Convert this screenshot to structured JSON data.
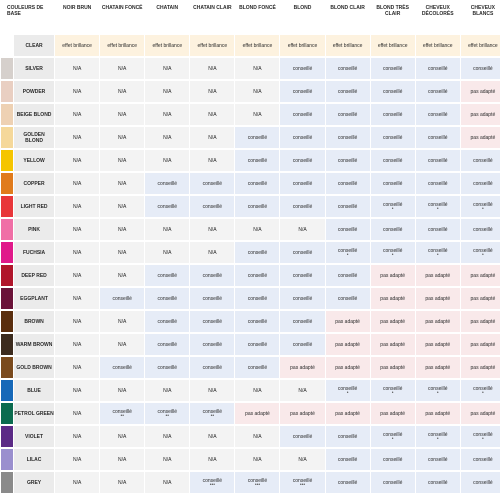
{
  "header": {
    "base_label": "COULEURS DE BASE",
    "columns": [
      "NOIR BRUN",
      "CHATAIN FONCÉ",
      "CHATAIN",
      "CHATAIN CLAIR",
      "BLOND FONCÉ",
      "BLOND",
      "BLOND CLAIR",
      "BLOND TRÈS CLAIR",
      "CHEVEUX DÉCOLORÉS",
      "CHEVEUX BLANCS"
    ]
  },
  "rows": [
    {
      "name": "CLEAR",
      "swatch": "#ffffff",
      "cells": [
        {
          "t": "effet brillance",
          "s": "eff"
        },
        {
          "t": "effet brillance",
          "s": "eff"
        },
        {
          "t": "effet brillance",
          "s": "eff"
        },
        {
          "t": "effet brillance",
          "s": "eff"
        },
        {
          "t": "effet brillance",
          "s": "eff"
        },
        {
          "t": "effet brillance",
          "s": "eff"
        },
        {
          "t": "effet brillance",
          "s": "eff"
        },
        {
          "t": "effet brillance",
          "s": "eff"
        },
        {
          "t": "effet brillance",
          "s": "eff"
        },
        {
          "t": "effet brillance",
          "s": "eff"
        }
      ]
    },
    {
      "name": "SILVER",
      "swatch": "#d6d0cc",
      "cells": [
        {
          "t": "N/A",
          "s": "neutral"
        },
        {
          "t": "N/A",
          "s": "neutral"
        },
        {
          "t": "N/A",
          "s": "neutral"
        },
        {
          "t": "N/A",
          "s": "neutral"
        },
        {
          "t": "N/A",
          "s": "neutral"
        },
        {
          "t": "conseillé",
          "s": "conseil"
        },
        {
          "t": "conseillé",
          "s": "conseil"
        },
        {
          "t": "conseillé",
          "s": "conseil"
        },
        {
          "t": "conseillé",
          "s": "conseil"
        },
        {
          "t": "conseillé",
          "s": "conseil"
        }
      ]
    },
    {
      "name": "POWDER",
      "swatch": "#e9cfc2",
      "cells": [
        {
          "t": "N/A",
          "s": "neutral"
        },
        {
          "t": "N/A",
          "s": "neutral"
        },
        {
          "t": "N/A",
          "s": "neutral"
        },
        {
          "t": "N/A",
          "s": "neutral"
        },
        {
          "t": "N/A",
          "s": "neutral"
        },
        {
          "t": "conseillé",
          "s": "conseil"
        },
        {
          "t": "conseillé",
          "s": "conseil"
        },
        {
          "t": "conseillé",
          "s": "conseil"
        },
        {
          "t": "conseillé",
          "s": "conseil"
        },
        {
          "t": "pas adapté",
          "s": "pas"
        }
      ]
    },
    {
      "name": "BEIGE BLOND",
      "swatch": "#eed1b3",
      "cells": [
        {
          "t": "N/A",
          "s": "neutral"
        },
        {
          "t": "N/A",
          "s": "neutral"
        },
        {
          "t": "N/A",
          "s": "neutral"
        },
        {
          "t": "N/A",
          "s": "neutral"
        },
        {
          "t": "N/A",
          "s": "neutral"
        },
        {
          "t": "conseillé",
          "s": "conseil"
        },
        {
          "t": "conseillé",
          "s": "conseil"
        },
        {
          "t": "conseillé",
          "s": "conseil"
        },
        {
          "t": "conseillé",
          "s": "conseil"
        },
        {
          "t": "pas adapté",
          "s": "pas"
        }
      ]
    },
    {
      "name": "GOLDEN BLOND",
      "swatch": "#f5d89a",
      "cells": [
        {
          "t": "N/A",
          "s": "neutral"
        },
        {
          "t": "N/A",
          "s": "neutral"
        },
        {
          "t": "N/A",
          "s": "neutral"
        },
        {
          "t": "N/A",
          "s": "neutral"
        },
        {
          "t": "conseillé",
          "s": "conseil"
        },
        {
          "t": "conseillé",
          "s": "conseil"
        },
        {
          "t": "conseillé",
          "s": "conseil"
        },
        {
          "t": "conseillé",
          "s": "conseil"
        },
        {
          "t": "conseillé",
          "s": "conseil"
        },
        {
          "t": "pas adapté",
          "s": "pas"
        }
      ]
    },
    {
      "name": "YELLOW",
      "swatch": "#f5c500",
      "cells": [
        {
          "t": "N/A",
          "s": "neutral"
        },
        {
          "t": "N/A",
          "s": "neutral"
        },
        {
          "t": "N/A",
          "s": "neutral"
        },
        {
          "t": "N/A",
          "s": "neutral"
        },
        {
          "t": "conseillé",
          "s": "conseil"
        },
        {
          "t": "conseillé",
          "s": "conseil"
        },
        {
          "t": "conseillé",
          "s": "conseil"
        },
        {
          "t": "conseillé",
          "s": "conseil"
        },
        {
          "t": "conseillé",
          "s": "conseil"
        },
        {
          "t": "conseillé",
          "s": "conseil"
        }
      ]
    },
    {
      "name": "COPPER",
      "swatch": "#e07b1c",
      "cells": [
        {
          "t": "N/A",
          "s": "neutral"
        },
        {
          "t": "N/A",
          "s": "neutral"
        },
        {
          "t": "conseillé",
          "s": "conseil"
        },
        {
          "t": "conseillé",
          "s": "conseil"
        },
        {
          "t": "conseillé",
          "s": "conseil"
        },
        {
          "t": "conseillé",
          "s": "conseil"
        },
        {
          "t": "conseillé",
          "s": "conseil"
        },
        {
          "t": "conseillé",
          "s": "conseil"
        },
        {
          "t": "conseillé",
          "s": "conseil"
        },
        {
          "t": "conseillé",
          "s": "conseil"
        }
      ]
    },
    {
      "name": "LIGHT RED",
      "swatch": "#e8363a",
      "cells": [
        {
          "t": "N/A",
          "s": "neutral"
        },
        {
          "t": "N/A",
          "s": "neutral"
        },
        {
          "t": "conseillé",
          "s": "conseil"
        },
        {
          "t": "conseillé",
          "s": "conseil"
        },
        {
          "t": "conseillé",
          "s": "conseil"
        },
        {
          "t": "conseillé",
          "s": "conseil"
        },
        {
          "t": "conseillé",
          "s": "conseil"
        },
        {
          "t": "conseillé",
          "s": "conseil",
          "d": "•"
        },
        {
          "t": "conseillé",
          "s": "conseil",
          "d": "•"
        },
        {
          "t": "conseillé",
          "s": "conseil",
          "d": "•"
        }
      ]
    },
    {
      "name": "PINK",
      "swatch": "#f06fa6",
      "cells": [
        {
          "t": "N/A",
          "s": "neutral"
        },
        {
          "t": "N/A",
          "s": "neutral"
        },
        {
          "t": "N/A",
          "s": "neutral"
        },
        {
          "t": "N/A",
          "s": "neutral"
        },
        {
          "t": "N/A",
          "s": "neutral"
        },
        {
          "t": "N/A",
          "s": "neutral"
        },
        {
          "t": "conseillé",
          "s": "conseil"
        },
        {
          "t": "conseillé",
          "s": "conseil"
        },
        {
          "t": "conseillé",
          "s": "conseil"
        },
        {
          "t": "conseillé",
          "s": "conseil"
        }
      ]
    },
    {
      "name": "FUCHSIA",
      "swatch": "#e0198a",
      "cells": [
        {
          "t": "N/A",
          "s": "neutral"
        },
        {
          "t": "N/A",
          "s": "neutral"
        },
        {
          "t": "N/A",
          "s": "neutral"
        },
        {
          "t": "N/A",
          "s": "neutral"
        },
        {
          "t": "conseillé",
          "s": "conseil"
        },
        {
          "t": "conseillé",
          "s": "conseil"
        },
        {
          "t": "conseillé",
          "s": "conseil",
          "d": "•"
        },
        {
          "t": "conseillé",
          "s": "conseil",
          "d": "•"
        },
        {
          "t": "conseillé",
          "s": "conseil",
          "d": "•"
        },
        {
          "t": "conseillé",
          "s": "conseil",
          "d": "•"
        }
      ]
    },
    {
      "name": "DEEP RED",
      "swatch": "#b0152b",
      "cells": [
        {
          "t": "N/A",
          "s": "neutral"
        },
        {
          "t": "N/A",
          "s": "neutral"
        },
        {
          "t": "conseillé",
          "s": "conseil"
        },
        {
          "t": "conseillé",
          "s": "conseil"
        },
        {
          "t": "conseillé",
          "s": "conseil"
        },
        {
          "t": "conseillé",
          "s": "conseil"
        },
        {
          "t": "conseillé",
          "s": "conseil"
        },
        {
          "t": "pas adapté",
          "s": "pas"
        },
        {
          "t": "pas adapté",
          "s": "pas"
        },
        {
          "t": "pas adapté",
          "s": "pas"
        }
      ]
    },
    {
      "name": "EGGPLANT",
      "swatch": "#6a1238",
      "cells": [
        {
          "t": "N/A",
          "s": "neutral"
        },
        {
          "t": "conseillé",
          "s": "conseil"
        },
        {
          "t": "conseillé",
          "s": "conseil"
        },
        {
          "t": "conseillé",
          "s": "conseil"
        },
        {
          "t": "conseillé",
          "s": "conseil"
        },
        {
          "t": "conseillé",
          "s": "conseil"
        },
        {
          "t": "conseillé",
          "s": "conseil"
        },
        {
          "t": "pas adapté",
          "s": "pas"
        },
        {
          "t": "pas adapté",
          "s": "pas"
        },
        {
          "t": "pas adapté",
          "s": "pas"
        }
      ]
    },
    {
      "name": "BROWN",
      "swatch": "#5a2e0e",
      "cells": [
        {
          "t": "N/A",
          "s": "neutral"
        },
        {
          "t": "N/A",
          "s": "neutral"
        },
        {
          "t": "conseillé",
          "s": "conseil"
        },
        {
          "t": "conseillé",
          "s": "conseil"
        },
        {
          "t": "conseillé",
          "s": "conseil"
        },
        {
          "t": "conseillé",
          "s": "conseil"
        },
        {
          "t": "pas adapté",
          "s": "pas"
        },
        {
          "t": "pas adapté",
          "s": "pas"
        },
        {
          "t": "pas adapté",
          "s": "pas"
        },
        {
          "t": "pas adapté",
          "s": "pas"
        }
      ]
    },
    {
      "name": "WARM BROWN",
      "swatch": "#3c2b1e",
      "cells": [
        {
          "t": "N/A",
          "s": "neutral"
        },
        {
          "t": "N/A",
          "s": "neutral"
        },
        {
          "t": "conseillé",
          "s": "conseil"
        },
        {
          "t": "conseillé",
          "s": "conseil"
        },
        {
          "t": "conseillé",
          "s": "conseil"
        },
        {
          "t": "conseillé",
          "s": "conseil"
        },
        {
          "t": "pas adapté",
          "s": "pas"
        },
        {
          "t": "pas adapté",
          "s": "pas"
        },
        {
          "t": "pas adapté",
          "s": "pas"
        },
        {
          "t": "pas adapté",
          "s": "pas"
        }
      ]
    },
    {
      "name": "GOLD BROWN",
      "swatch": "#7a4a1d",
      "cells": [
        {
          "t": "N/A",
          "s": "neutral"
        },
        {
          "t": "conseillé",
          "s": "conseil"
        },
        {
          "t": "conseillé",
          "s": "conseil"
        },
        {
          "t": "conseillé",
          "s": "conseil"
        },
        {
          "t": "conseillé",
          "s": "conseil"
        },
        {
          "t": "pas adapté",
          "s": "pas"
        },
        {
          "t": "pas adapté",
          "s": "pas"
        },
        {
          "t": "pas adapté",
          "s": "pas"
        },
        {
          "t": "pas adapté",
          "s": "pas"
        },
        {
          "t": "pas adapté",
          "s": "pas"
        }
      ]
    },
    {
      "name": "BLUE",
      "swatch": "#1668b8",
      "cells": [
        {
          "t": "N/A",
          "s": "neutral"
        },
        {
          "t": "N/A",
          "s": "neutral"
        },
        {
          "t": "N/A",
          "s": "neutral"
        },
        {
          "t": "N/A",
          "s": "neutral"
        },
        {
          "t": "N/A",
          "s": "neutral"
        },
        {
          "t": "N/A",
          "s": "neutral"
        },
        {
          "t": "conseillé",
          "s": "conseil",
          "d": "•"
        },
        {
          "t": "conseillé",
          "s": "conseil",
          "d": "•"
        },
        {
          "t": "conseillé",
          "s": "conseil",
          "d": "•"
        },
        {
          "t": "conseillé",
          "s": "conseil",
          "d": "•"
        }
      ]
    },
    {
      "name": "PETROL GREEN",
      "swatch": "#0b6b4f",
      "cells": [
        {
          "t": "N/A",
          "s": "neutral"
        },
        {
          "t": "conseillé",
          "s": "conseil",
          "d": "••"
        },
        {
          "t": "conseillé",
          "s": "conseil",
          "d": "••"
        },
        {
          "t": "conseillé",
          "s": "conseil",
          "d": "••"
        },
        {
          "t": "pas adapté",
          "s": "pas"
        },
        {
          "t": "pas adapté",
          "s": "pas"
        },
        {
          "t": "pas adapté",
          "s": "pas"
        },
        {
          "t": "pas adapté",
          "s": "pas"
        },
        {
          "t": "pas adapté",
          "s": "pas"
        },
        {
          "t": "pas adapté",
          "s": "pas"
        }
      ]
    },
    {
      "name": "VIOLET",
      "swatch": "#5b2a86",
      "cells": [
        {
          "t": "N/A",
          "s": "neutral"
        },
        {
          "t": "N/A",
          "s": "neutral"
        },
        {
          "t": "N/A",
          "s": "neutral"
        },
        {
          "t": "N/A",
          "s": "neutral"
        },
        {
          "t": "N/A",
          "s": "neutral"
        },
        {
          "t": "conseillé",
          "s": "conseil"
        },
        {
          "t": "conseillé",
          "s": "conseil"
        },
        {
          "t": "conseillé",
          "s": "conseil",
          "d": "•"
        },
        {
          "t": "conseillé",
          "s": "conseil",
          "d": "•"
        },
        {
          "t": "conseillé",
          "s": "conseil",
          "d": "•"
        }
      ]
    },
    {
      "name": "LILAC",
      "swatch": "#9a8fce",
      "cells": [
        {
          "t": "N/A",
          "s": "neutral"
        },
        {
          "t": "N/A",
          "s": "neutral"
        },
        {
          "t": "N/A",
          "s": "neutral"
        },
        {
          "t": "N/A",
          "s": "neutral"
        },
        {
          "t": "N/A",
          "s": "neutral"
        },
        {
          "t": "N/A",
          "s": "neutral"
        },
        {
          "t": "conseillé",
          "s": "conseil"
        },
        {
          "t": "conseillé",
          "s": "conseil"
        },
        {
          "t": "conseillé",
          "s": "conseil"
        },
        {
          "t": "conseillé",
          "s": "conseil"
        }
      ]
    },
    {
      "name": "GREY",
      "swatch": "#8a8a8a",
      "cells": [
        {
          "t": "N/A",
          "s": "neutral"
        },
        {
          "t": "N/A",
          "s": "neutral"
        },
        {
          "t": "N/A",
          "s": "neutral"
        },
        {
          "t": "conseillé",
          "s": "conseil",
          "d": "•••"
        },
        {
          "t": "conseillé",
          "s": "conseil",
          "d": "•••"
        },
        {
          "t": "conseillé",
          "s": "conseil",
          "d": "•••"
        },
        {
          "t": "conseillé",
          "s": "conseil"
        },
        {
          "t": "conseillé",
          "s": "conseil"
        },
        {
          "t": "conseillé",
          "s": "conseil"
        },
        {
          "t": "conseillé",
          "s": "conseil"
        }
      ]
    }
  ]
}
